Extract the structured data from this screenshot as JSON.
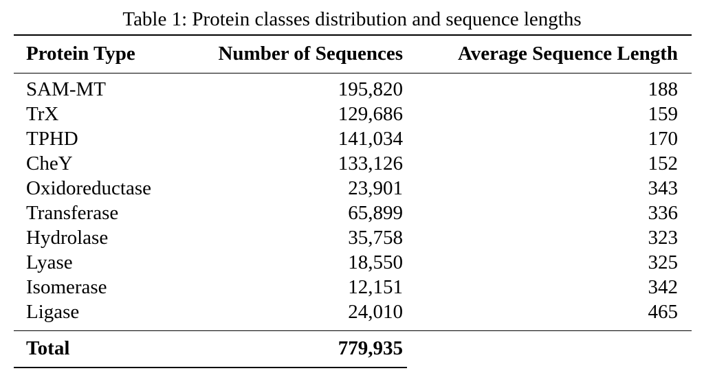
{
  "table": {
    "caption": "Table 1: Protein classes distribution and sequence lengths",
    "headers": [
      "Protein Type",
      "Number of Sequences",
      "Average Sequence Length"
    ],
    "rows": [
      {
        "type": "SAM-MT",
        "sequences": "195,820",
        "avg_length": "188"
      },
      {
        "type": "TrX",
        "sequences": "129,686",
        "avg_length": "159"
      },
      {
        "type": "TPHD",
        "sequences": "141,034",
        "avg_length": "170"
      },
      {
        "type": "CheY",
        "sequences": "133,126",
        "avg_length": "152"
      },
      {
        "type": "Oxidoreductase",
        "sequences": "23,901",
        "avg_length": "343"
      },
      {
        "type": "Transferase",
        "sequences": "65,899",
        "avg_length": "336"
      },
      {
        "type": "Hydrolase",
        "sequences": "35,758",
        "avg_length": "323"
      },
      {
        "type": "Lyase",
        "sequences": "18,550",
        "avg_length": "325"
      },
      {
        "type": "Isomerase",
        "sequences": "12,151",
        "avg_length": "342"
      },
      {
        "type": "Ligase",
        "sequences": "24,010",
        "avg_length": "465"
      }
    ],
    "total": {
      "label": "Total",
      "sequences": "779,935"
    }
  }
}
